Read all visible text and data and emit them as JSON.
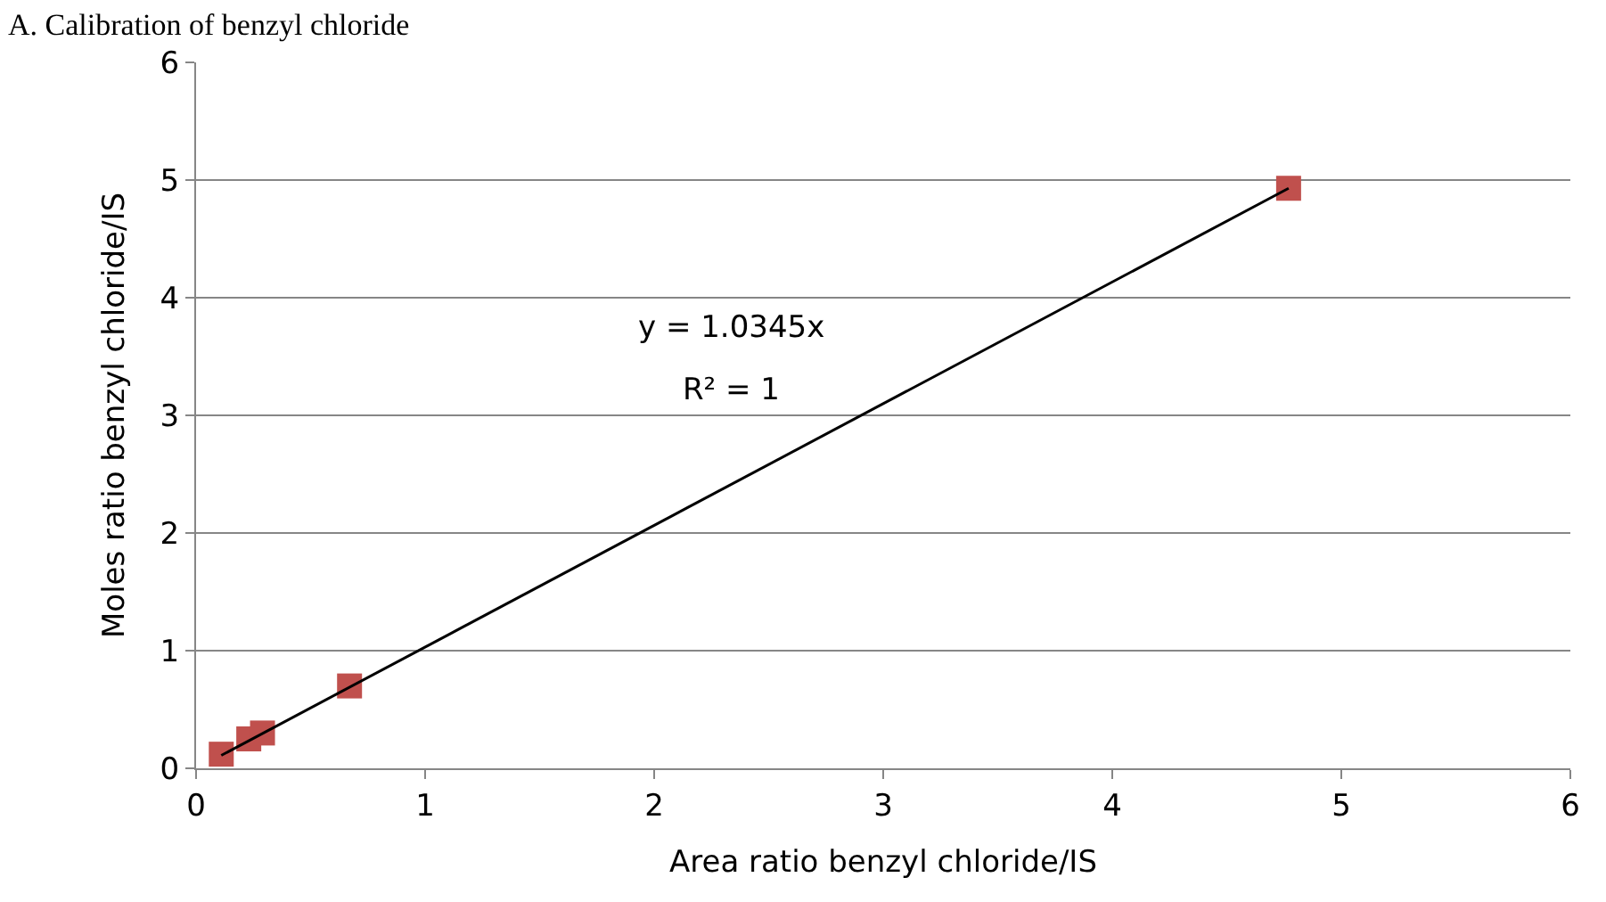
{
  "chart_data": {
    "type": "scatter",
    "title": "A. Calibration of benzyl chloride",
    "xlabel": "Area ratio benzyl chloride/IS",
    "ylabel": "Moles ratio benzyl chloride/IS",
    "series": [
      {
        "color": "#c0504d",
        "marker": "square",
        "x": [
          0.11,
          0.23,
          0.29,
          0.67,
          4.77
        ],
        "values": [
          0.12,
          0.25,
          0.3,
          0.7,
          4.93
        ]
      },
      {
        "type": "line",
        "color": "#000000",
        "marker": "none",
        "line_style": "solid",
        "x": [
          0.11,
          4.77
        ],
        "values": [
          0.11,
          4.93
        ]
      }
    ],
    "annotations": [
      "y = 1.0345x",
      "R² = 1"
    ],
    "xlim": [
      0,
      6
    ],
    "xticks": [
      0,
      1,
      2,
      3,
      4,
      5,
      6
    ],
    "ylim": [
      0,
      6
    ],
    "yticks": [
      0,
      1,
      2,
      3,
      4,
      5,
      6
    ],
    "grid": "y",
    "legend": false
  }
}
